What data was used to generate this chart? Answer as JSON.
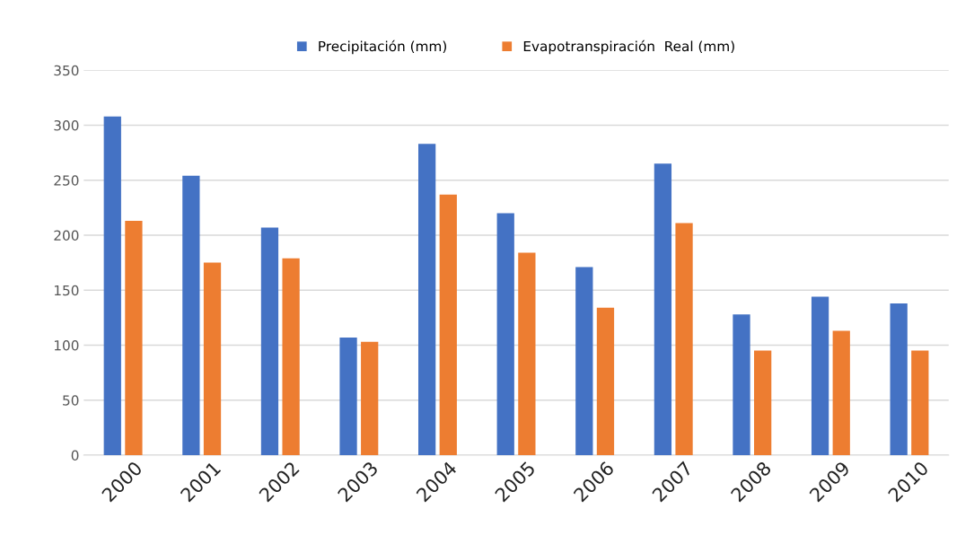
{
  "chart_data": {
    "type": "bar",
    "categories": [
      "2000",
      "2001",
      "2002",
      "2003",
      "2004",
      "2005",
      "2006",
      "2007",
      "2008",
      "2009",
      "2010"
    ],
    "series": [
      {
        "name": "Precipitación (mm)",
        "color": "#4472c4",
        "values": [
          308,
          254,
          207,
          107,
          283,
          220,
          171,
          265,
          128,
          144,
          138
        ]
      },
      {
        "name": "Evapotranspiración  Real (mm)",
        "color": "#ed7d31",
        "values": [
          213,
          175,
          179,
          103,
          237,
          184,
          134,
          211,
          95,
          113,
          95
        ]
      }
    ],
    "ylim": [
      0,
      350
    ],
    "yticks": [
      0,
      50,
      100,
      150,
      200,
      250,
      300,
      350
    ],
    "grid": "y",
    "legend": "top"
  }
}
